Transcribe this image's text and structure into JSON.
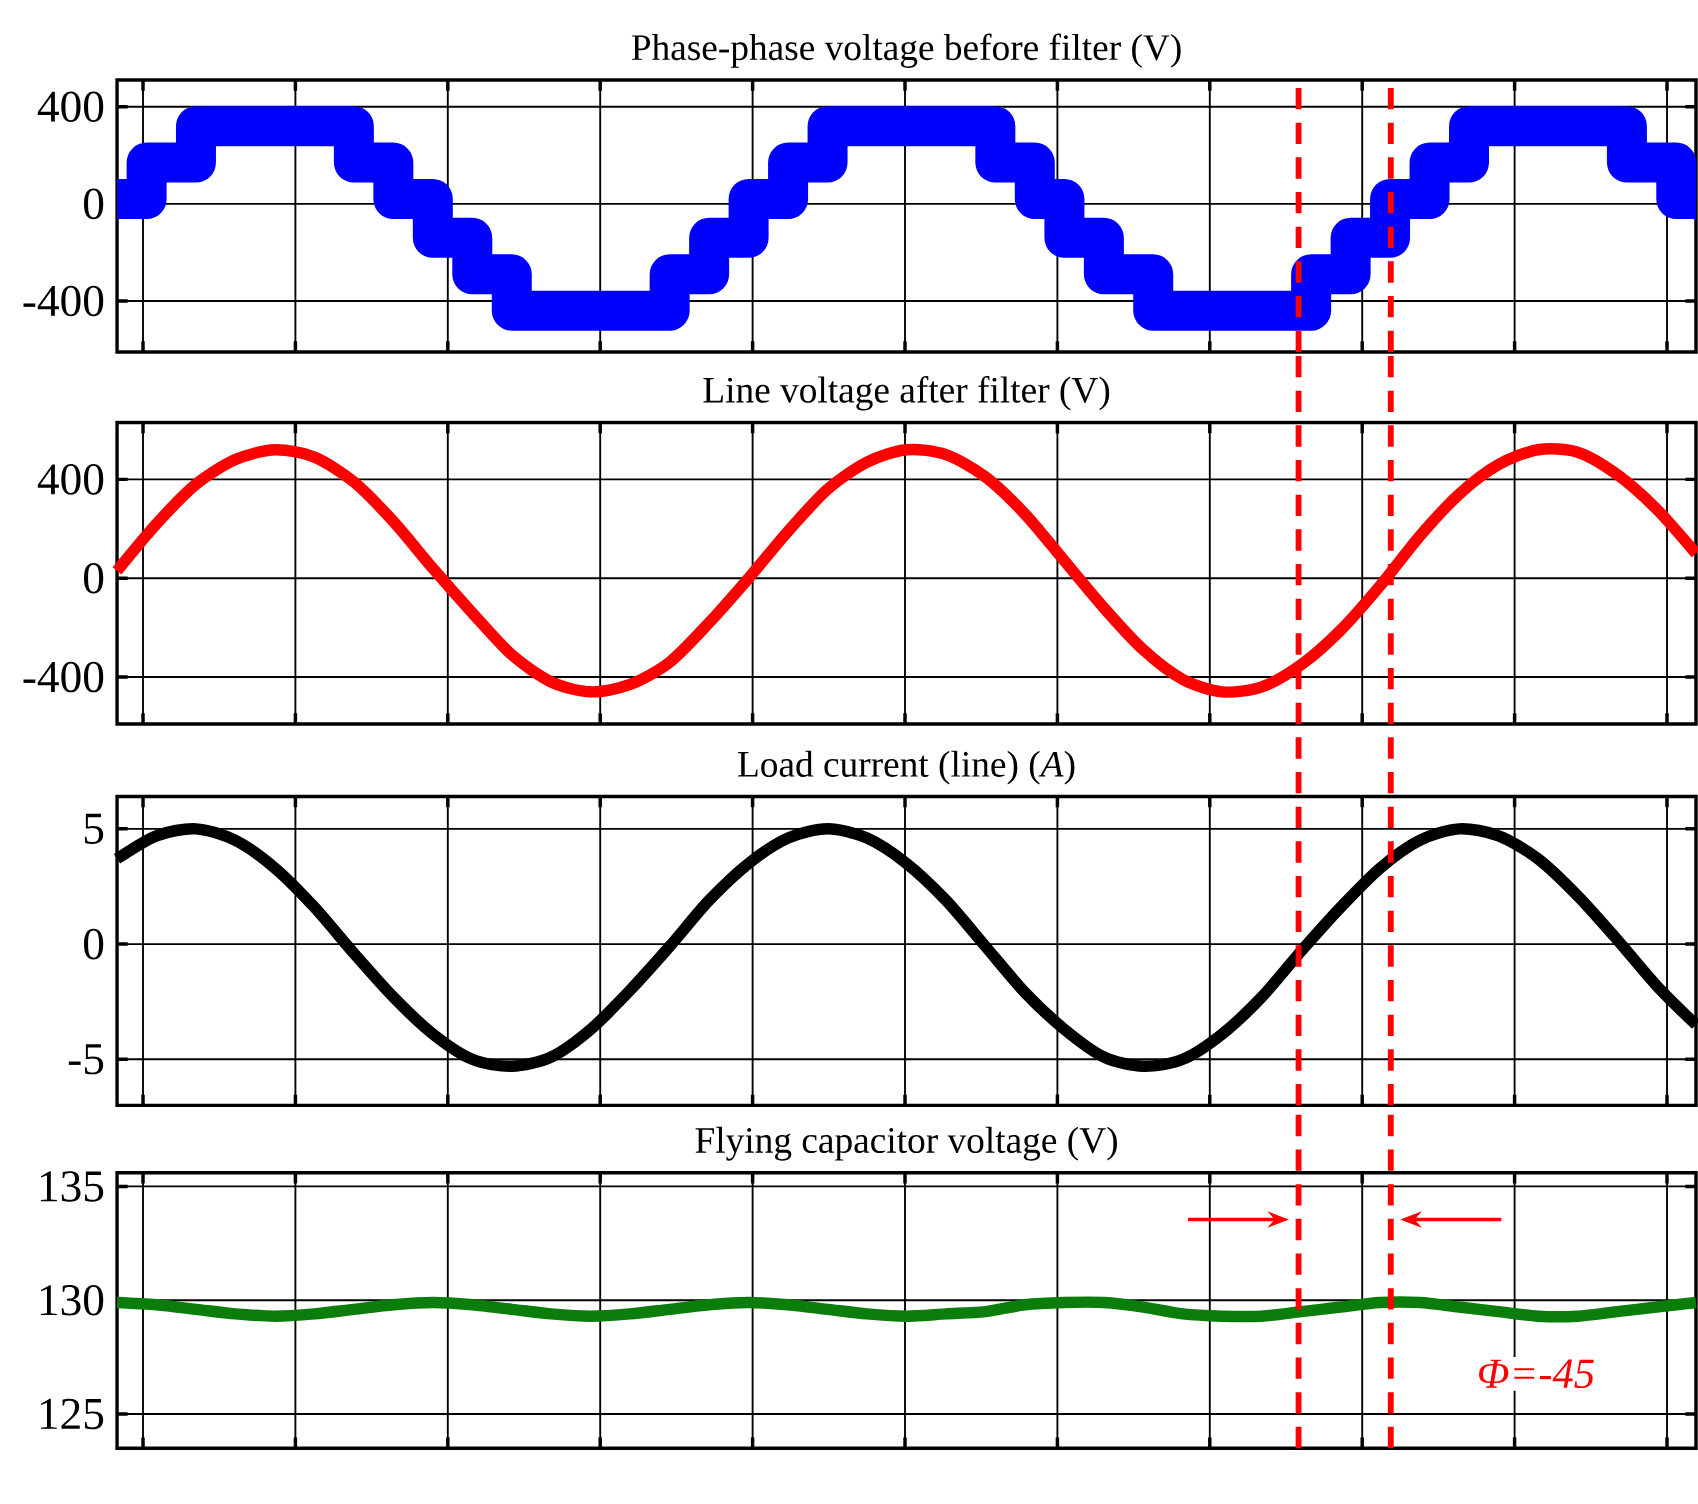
{
  "chart_data": [
    {
      "type": "step",
      "title": "Phase-phase voltage before filter (V)",
      "grid": true,
      "tick_labels": "y",
      "categories": [
        null,
        null,
        null,
        null,
        null,
        null,
        null,
        null,
        null,
        null,
        null,
        null,
        null,
        null,
        null,
        null,
        null,
        null,
        null,
        null,
        null,
        null,
        null,
        null,
        null,
        null,
        null,
        null,
        null,
        null,
        null,
        null,
        null,
        null,
        null,
        null,
        null,
        null,
        null,
        null,
        null,
        null,
        null,
        null,
        null,
        null,
        null,
        null,
        null,
        null,
        null,
        null,
        null,
        null,
        null,
        null,
        null,
        null,
        null,
        null,
        null,
        null,
        null,
        null,
        null,
        null,
        null,
        null,
        null,
        null,
        null,
        null,
        null,
        null,
        null,
        null,
        null,
        null,
        null,
        null,
        null,
        null,
        null,
        null,
        null,
        null,
        null,
        null,
        null,
        null,
        null,
        null,
        null,
        null,
        null,
        null,
        null,
        null,
        null,
        null,
        null,
        null,
        null,
        null,
        null,
        null,
        null,
        null,
        null,
        null,
        null,
        null,
        null,
        null,
        null,
        null,
        null,
        null,
        null,
        null,
        null,
        null,
        null,
        null,
        null,
        null,
        null,
        null,
        null,
        null,
        null,
        null,
        null,
        null,
        null,
        null,
        null,
        null,
        null,
        null,
        null,
        null,
        null,
        null,
        null,
        null,
        null,
        null,
        null,
        null,
        null,
        null,
        null,
        null,
        null,
        null,
        null,
        null,
        null,
        null,
        null
      ],
      "ylim": [
        -610,
        510
      ],
      "yticks": [
        -400,
        0,
        400
      ],
      "series": [
        {
          "color": "#0000ff",
          "values": [
            20,
            20,
            20,
            170,
            170,
            170,
            170,
            170,
            320,
            320,
            320,
            320,
            320,
            320,
            320,
            320,
            320,
            320,
            320,
            320,
            320,
            320,
            320,
            320,
            170,
            170,
            170,
            170,
            20,
            20,
            20,
            20,
            -140,
            -140,
            -140,
            -140,
            -290,
            -290,
            -290,
            -290,
            -440,
            -440,
            -440,
            -440,
            -440,
            -440,
            -440,
            -440,
            -440,
            -440,
            -440,
            -440,
            -440,
            -440,
            -440,
            -440,
            -290,
            -290,
            -290,
            -290,
            -140,
            -140,
            -140,
            -140,
            20,
            20,
            20,
            20,
            170,
            170,
            170,
            170,
            320,
            320,
            320,
            320,
            320,
            320,
            320,
            320,
            320,
            320,
            320,
            320,
            320,
            320,
            320,
            320,
            320,
            170,
            170,
            170,
            170,
            20,
            20,
            20,
            -140,
            -140,
            -140,
            -140,
            -290,
            -290,
            -290,
            -290,
            -290,
            -440,
            -440,
            -440,
            -440,
            -440,
            -440,
            -440,
            -440,
            -440,
            -440,
            -440,
            -440,
            -440,
            -440,
            -440,
            -440,
            -290,
            -290,
            -290,
            -290,
            -140,
            -140,
            -140,
            -140,
            20,
            20,
            20,
            20,
            170,
            170,
            170,
            170,
            320,
            320,
            320,
            320,
            320,
            320,
            320,
            320,
            320,
            320,
            320,
            320,
            320,
            320,
            320,
            320,
            170,
            170,
            170,
            170,
            170,
            20,
            20,
            20
          ]
        }
      ]
    },
    {
      "type": "line",
      "title": "Line voltage after filter (V)",
      "grid": true,
      "tick_labels": "y",
      "categories": [
        null,
        null,
        null,
        null,
        null,
        null,
        null,
        null,
        null,
        null,
        null,
        null,
        null,
        null,
        null,
        null,
        null,
        null,
        null,
        null,
        null,
        null,
        null,
        null,
        null,
        null,
        null,
        null,
        null,
        null,
        null,
        null,
        null,
        null,
        null,
        null,
        null,
        null,
        null,
        null,
        null
      ],
      "ylim": [
        -590,
        630
      ],
      "yticks": [
        -400,
        0,
        400
      ],
      "series": [
        {
          "color": "#ff0000",
          "values": [
            30,
            220,
            380,
            480,
            520,
            490,
            390,
            230,
            40,
            -140,
            -310,
            -420,
            -460,
            -430,
            -340,
            -180,
            0,
            190,
            360,
            470,
            520,
            500,
            410,
            260,
            70,
            -120,
            -290,
            -410,
            -460,
            -440,
            -350,
            -210,
            -30,
            170,
            340,
            460,
            520,
            510,
            420,
            280,
            100
          ]
        }
      ]
    },
    {
      "type": "line",
      "title": "Load current (line) (*A*)",
      "grid": true,
      "tick_labels": "y",
      "categories": [
        null,
        null,
        null,
        null,
        null,
        null,
        null,
        null,
        null,
        null,
        null,
        null,
        null,
        null,
        null,
        null,
        null,
        null,
        null,
        null,
        null,
        null,
        null,
        null,
        null,
        null,
        null,
        null,
        null,
        null,
        null,
        null,
        null,
        null,
        null,
        null,
        null,
        null,
        null,
        null,
        null
      ],
      "ylim": [
        -7,
        6.4
      ],
      "yticks": [
        -5,
        0,
        5
      ],
      "series": [
        {
          "color": "#000000",
          "values": [
            3.7,
            4.7,
            5.0,
            4.5,
            3.3,
            1.6,
            -0.4,
            -2.3,
            -3.9,
            -5.0,
            -5.3,
            -4.9,
            -3.7,
            -2.0,
            -0.1,
            1.9,
            3.5,
            4.6,
            5.0,
            4.6,
            3.5,
            1.9,
            -0.1,
            -2.1,
            -3.7,
            -4.9,
            -5.3,
            -5.0,
            -3.9,
            -2.3,
            -0.3,
            1.6,
            3.3,
            4.5,
            5.0,
            4.7,
            3.7,
            2.1,
            0.2,
            -1.8,
            -3.5
          ]
        }
      ]
    },
    {
      "type": "line",
      "title": "Flying capacitor voltage (V)",
      "grid": true,
      "tick_labels": "y",
      "categories": [
        null,
        null,
        null,
        null,
        null,
        null,
        null,
        null,
        null,
        null,
        null,
        null,
        null,
        null,
        null,
        null,
        null,
        null,
        null,
        null,
        null,
        null,
        null,
        null,
        null,
        null,
        null,
        null,
        null,
        null,
        null,
        null,
        null,
        null,
        null,
        null,
        null,
        null,
        null,
        null,
        null
      ],
      "ylim": [
        123.5,
        135.6
      ],
      "yticks": [
        125,
        130,
        135
      ],
      "series": [
        {
          "color": "#0a7d0a",
          "values": [
            129.9,
            129.8,
            129.6,
            129.4,
            129.3,
            129.4,
            129.6,
            129.8,
            129.9,
            129.8,
            129.6,
            129.4,
            129.3,
            129.4,
            129.6,
            129.8,
            129.9,
            129.8,
            129.6,
            129.4,
            129.3,
            129.4,
            129.5,
            129.8,
            129.9,
            129.9,
            129.7,
            129.4,
            129.3,
            129.3,
            129.5,
            129.7,
            129.9,
            129.9,
            129.7,
            129.5,
            129.3,
            129.3,
            129.5,
            129.7,
            129.9
          ]
        }
      ],
      "annotations": [
        "Φ=-45"
      ]
    }
  ]
}
